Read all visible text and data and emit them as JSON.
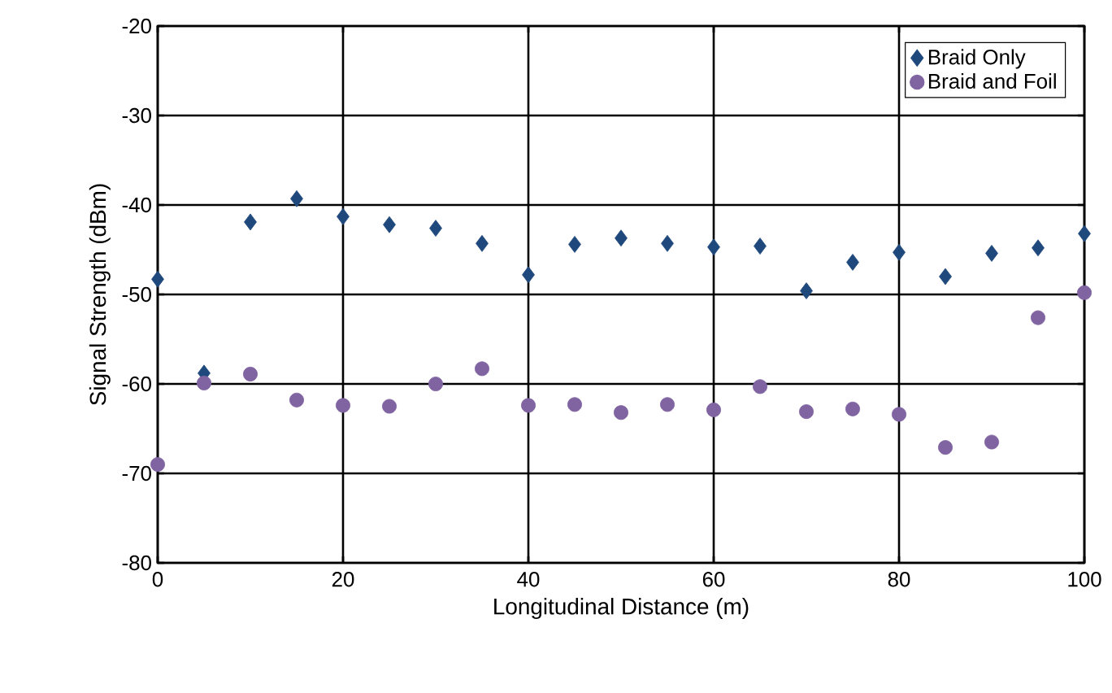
{
  "chart_data": {
    "type": "scatter",
    "xlabel": "Longitudinal Distance (m)",
    "ylabel": "Signal Strength (dBm)",
    "xlim": [
      0,
      100
    ],
    "ylim": [
      -80,
      -20
    ],
    "xticks": [
      0,
      20,
      40,
      60,
      80,
      100
    ],
    "yticks": [
      -80,
      -70,
      -60,
      -50,
      -40,
      -30,
      -20
    ],
    "grid": true,
    "legend": "top right",
    "x": [
      0,
      5,
      10,
      15,
      20,
      25,
      30,
      35,
      40,
      45,
      50,
      55,
      60,
      65,
      70,
      75,
      80,
      85,
      90,
      95,
      100
    ],
    "series": [
      {
        "name": "Braid Only",
        "color": "#1f497d",
        "marker": "diamond",
        "values": [
          -48.3,
          -58.8,
          -41.9,
          -39.3,
          -41.3,
          -42.2,
          -42.6,
          -44.3,
          -47.8,
          -44.4,
          -43.7,
          -44.3,
          -44.7,
          -44.6,
          -49.6,
          -46.4,
          -45.3,
          -48.0,
          -45.4,
          -44.8,
          -43.2
        ]
      },
      {
        "name": "Braid and Foil",
        "color": "#8064a2",
        "marker": "circle",
        "values": [
          -69.0,
          -59.9,
          -58.9,
          -61.8,
          -62.4,
          -62.5,
          -60.0,
          -58.3,
          -62.4,
          -62.3,
          -63.2,
          -62.3,
          -62.9,
          -60.3,
          -63.1,
          -62.8,
          -63.4,
          -67.1,
          -66.5,
          -52.6,
          -49.8
        ]
      }
    ]
  }
}
